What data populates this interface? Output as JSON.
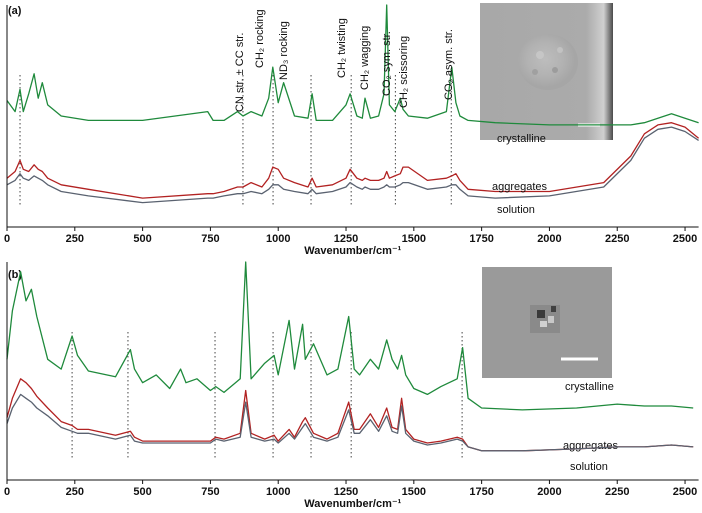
{
  "chart_data": [
    {
      "type": "line",
      "panel_label": "(a)",
      "xlabel": "Wavenumber/cm⁻¹",
      "xlim": [
        0,
        2550
      ],
      "xticks": [
        0,
        250,
        500,
        750,
        1000,
        1250,
        1500,
        1750,
        2000,
        2250,
        2500
      ],
      "ylim": [
        0,
        100
      ],
      "markers": [
        48,
        870,
        981,
        1121,
        1269,
        1432,
        1638
      ],
      "annotations": [
        "CN str. ± CC str.",
        "CH₂ rocking",
        "ND₃ rocking",
        "CH₂ twisting",
        "CH₂ wagging",
        "CO₂ sym. str.",
        "CH₂ scissoring",
        "CO₂ asym. str."
      ],
      "x": [
        0,
        30,
        48,
        60,
        80,
        100,
        115,
        130,
        150,
        200,
        300,
        500,
        740,
        760,
        800,
        850,
        870,
        900,
        940,
        965,
        980,
        1000,
        1020,
        1060,
        1110,
        1125,
        1140,
        1200,
        1250,
        1265,
        1290,
        1310,
        1320,
        1340,
        1370,
        1390,
        1400,
        1410,
        1430,
        1450,
        1460,
        1480,
        1550,
        1620,
        1640,
        1655,
        1670,
        1700,
        1800,
        2000,
        2200,
        2300,
        2350,
        2400,
        2450,
        2500,
        2550
      ],
      "series": [
        {
          "name": "crystalline",
          "color": "#1f8a3c",
          "values": [
            57,
            52,
            62,
            52,
            60,
            69,
            58,
            65,
            55,
            50,
            48,
            48,
            52,
            48,
            48,
            52,
            50,
            52,
            50,
            58,
            72,
            56,
            65,
            50,
            49,
            60,
            48,
            48,
            55,
            60,
            50,
            49,
            58,
            49,
            50,
            60,
            100,
            55,
            52,
            58,
            53,
            50,
            49,
            52,
            72,
            56,
            50,
            48,
            47,
            46,
            46,
            46,
            47,
            49,
            51,
            49,
            47
          ]
        },
        {
          "name": "aggregates",
          "color": "#b22222",
          "values": [
            22,
            25,
            30,
            26,
            25,
            28,
            26,
            25,
            22,
            19,
            17,
            13,
            15,
            15,
            16,
            18,
            18,
            20,
            18,
            22,
            27,
            26,
            22,
            20,
            18,
            22,
            18,
            19,
            22,
            26,
            22,
            21,
            22,
            21,
            21,
            22,
            25,
            22,
            23,
            24,
            27,
            27,
            21,
            22,
            23,
            24,
            21,
            17,
            16,
            16,
            20,
            32,
            42,
            46,
            47,
            45,
            40
          ]
        },
        {
          "name": "solution",
          "color": "#5a6270",
          "values": [
            19,
            21,
            24,
            22,
            21,
            23,
            22,
            21,
            19,
            16,
            14,
            11,
            13,
            13,
            14,
            15,
            15,
            16,
            15,
            17,
            19,
            19,
            17,
            16,
            15,
            17,
            15,
            16,
            18,
            20,
            18,
            17,
            18,
            17,
            17,
            18,
            19,
            18,
            18,
            19,
            20,
            20,
            17,
            18,
            19,
            19,
            17,
            14,
            13,
            14,
            18,
            30,
            40,
            44,
            45,
            43,
            39
          ]
        }
      ]
    },
    {
      "type": "line",
      "panel_label": "(b)",
      "xlabel": "Wavenumber/cm⁻¹",
      "xlim": [
        0,
        2550
      ],
      "xticks": [
        0,
        250,
        500,
        750,
        1000,
        1250,
        1500,
        1750,
        2000,
        2250,
        2500
      ],
      "ylim": [
        -12,
        100
      ],
      "markers": [
        240,
        446,
        767,
        981,
        1121,
        1269,
        1678
      ],
      "x": [
        0,
        20,
        50,
        70,
        90,
        110,
        150,
        200,
        240,
        260,
        300,
        400,
        455,
        470,
        500,
        550,
        600,
        640,
        660,
        700,
        750,
        770,
        800,
        860,
        880,
        900,
        950,
        985,
        1000,
        1040,
        1060,
        1090,
        1100,
        1130,
        1180,
        1220,
        1260,
        1280,
        1300,
        1340,
        1370,
        1400,
        1420,
        1440,
        1455,
        1470,
        1500,
        1550,
        1600,
        1660,
        1680,
        1700,
        1750,
        1900,
        2100,
        2250,
        2350,
        2450,
        2530
      ],
      "series": [
        {
          "name": "crystalline",
          "color": "#1f8a3c",
          "values": [
            50,
            75,
            95,
            80,
            86,
            72,
            50,
            45,
            62,
            52,
            44,
            41,
            55,
            45,
            38,
            42,
            35,
            45,
            38,
            40,
            34,
            36,
            33,
            40,
            100,
            40,
            48,
            52,
            42,
            70,
            45,
            68,
            50,
            58,
            42,
            45,
            72,
            45,
            42,
            50,
            45,
            60,
            50,
            45,
            52,
            42,
            35,
            32,
            36,
            40,
            56,
            30,
            25,
            24,
            25,
            27,
            26,
            26,
            25
          ]
        },
        {
          "name": "aggregates",
          "color": "#b22222",
          "values": [
            20,
            30,
            40,
            38,
            35,
            31,
            25,
            18,
            16,
            14,
            14,
            11,
            13,
            10,
            8,
            8,
            8,
            8,
            8,
            8,
            8,
            10,
            9,
            12,
            34,
            12,
            9,
            11,
            8,
            14,
            10,
            18,
            20,
            12,
            9,
            12,
            28,
            14,
            14,
            22,
            15,
            25,
            15,
            14,
            30,
            14,
            9,
            7,
            8,
            10,
            9,
            5,
            3,
            3,
            4,
            5,
            5,
            6,
            5
          ]
        },
        {
          "name": "solution",
          "color": "#5a6270",
          "values": [
            17,
            25,
            32,
            30,
            28,
            25,
            21,
            15,
            13,
            12,
            12,
            9,
            11,
            8,
            7,
            7,
            7,
            7,
            7,
            7,
            7,
            9,
            8,
            10,
            28,
            10,
            8,
            9,
            7,
            12,
            9,
            15,
            17,
            10,
            8,
            10,
            24,
            12,
            12,
            19,
            13,
            21,
            13,
            12,
            26,
            12,
            8,
            6,
            7,
            9,
            8,
            5,
            3,
            3,
            4,
            5,
            5,
            6,
            5
          ]
        }
      ]
    }
  ]
}
